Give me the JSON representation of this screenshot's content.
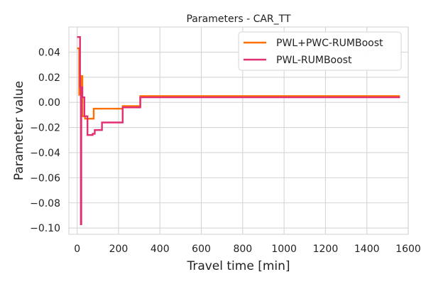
{
  "chart_data": {
    "type": "line",
    "title": "Parameters - CAR_TT",
    "xlabel": "Travel time [min]",
    "ylabel": "Parameter value",
    "xlim": [
      -40,
      1600
    ],
    "ylim": [
      -0.105,
      0.06
    ],
    "xticks": [
      0,
      200,
      400,
      600,
      800,
      1000,
      1200,
      1400,
      1600
    ],
    "yticks": [
      0.04,
      0.02,
      0.0,
      -0.02,
      -0.04,
      -0.06,
      -0.08,
      -0.1
    ],
    "xtick_labels": [
      "0",
      "200",
      "400",
      "600",
      "800",
      "1000",
      "1200",
      "1400",
      "1600"
    ],
    "ytick_labels": [
      "0.04",
      "0.02",
      "0.00",
      "−0.02",
      "−0.04",
      "−0.06",
      "−0.08",
      "−0.10"
    ],
    "grid": true,
    "legend_position": "top-right",
    "series": [
      {
        "name": "PWL+PWC-RUMBoost",
        "color": "#ff6f00",
        "x": [
          0,
          10,
          10,
          18,
          18,
          25,
          25,
          38,
          38,
          70,
          70,
          80,
          80,
          220,
          220,
          305,
          305,
          1560
        ],
        "y": [
          0.043,
          0.043,
          0.006,
          0.006,
          0.021,
          0.021,
          -0.011,
          -0.011,
          -0.013,
          -0.013,
          -0.013,
          -0.013,
          -0.005,
          -0.005,
          -0.003,
          -0.003,
          0.005,
          0.005
        ]
      },
      {
        "name": "PWL-RUMBoost",
        "color": "#e12f72",
        "x": [
          0,
          14,
          14,
          18,
          18,
          20,
          20,
          25,
          25,
          35,
          35,
          50,
          50,
          75,
          75,
          85,
          85,
          120,
          120,
          220,
          220,
          300,
          300,
          305,
          305,
          1560
        ],
        "y": [
          0.052,
          0.052,
          0.012,
          0.012,
          -0.097,
          -0.097,
          0.012,
          0.012,
          0.004,
          0.004,
          -0.011,
          -0.011,
          -0.026,
          -0.026,
          -0.025,
          -0.025,
          -0.022,
          -0.022,
          -0.016,
          -0.016,
          -0.004,
          -0.004,
          -0.004,
          -0.004,
          0.004,
          0.004
        ]
      }
    ]
  }
}
